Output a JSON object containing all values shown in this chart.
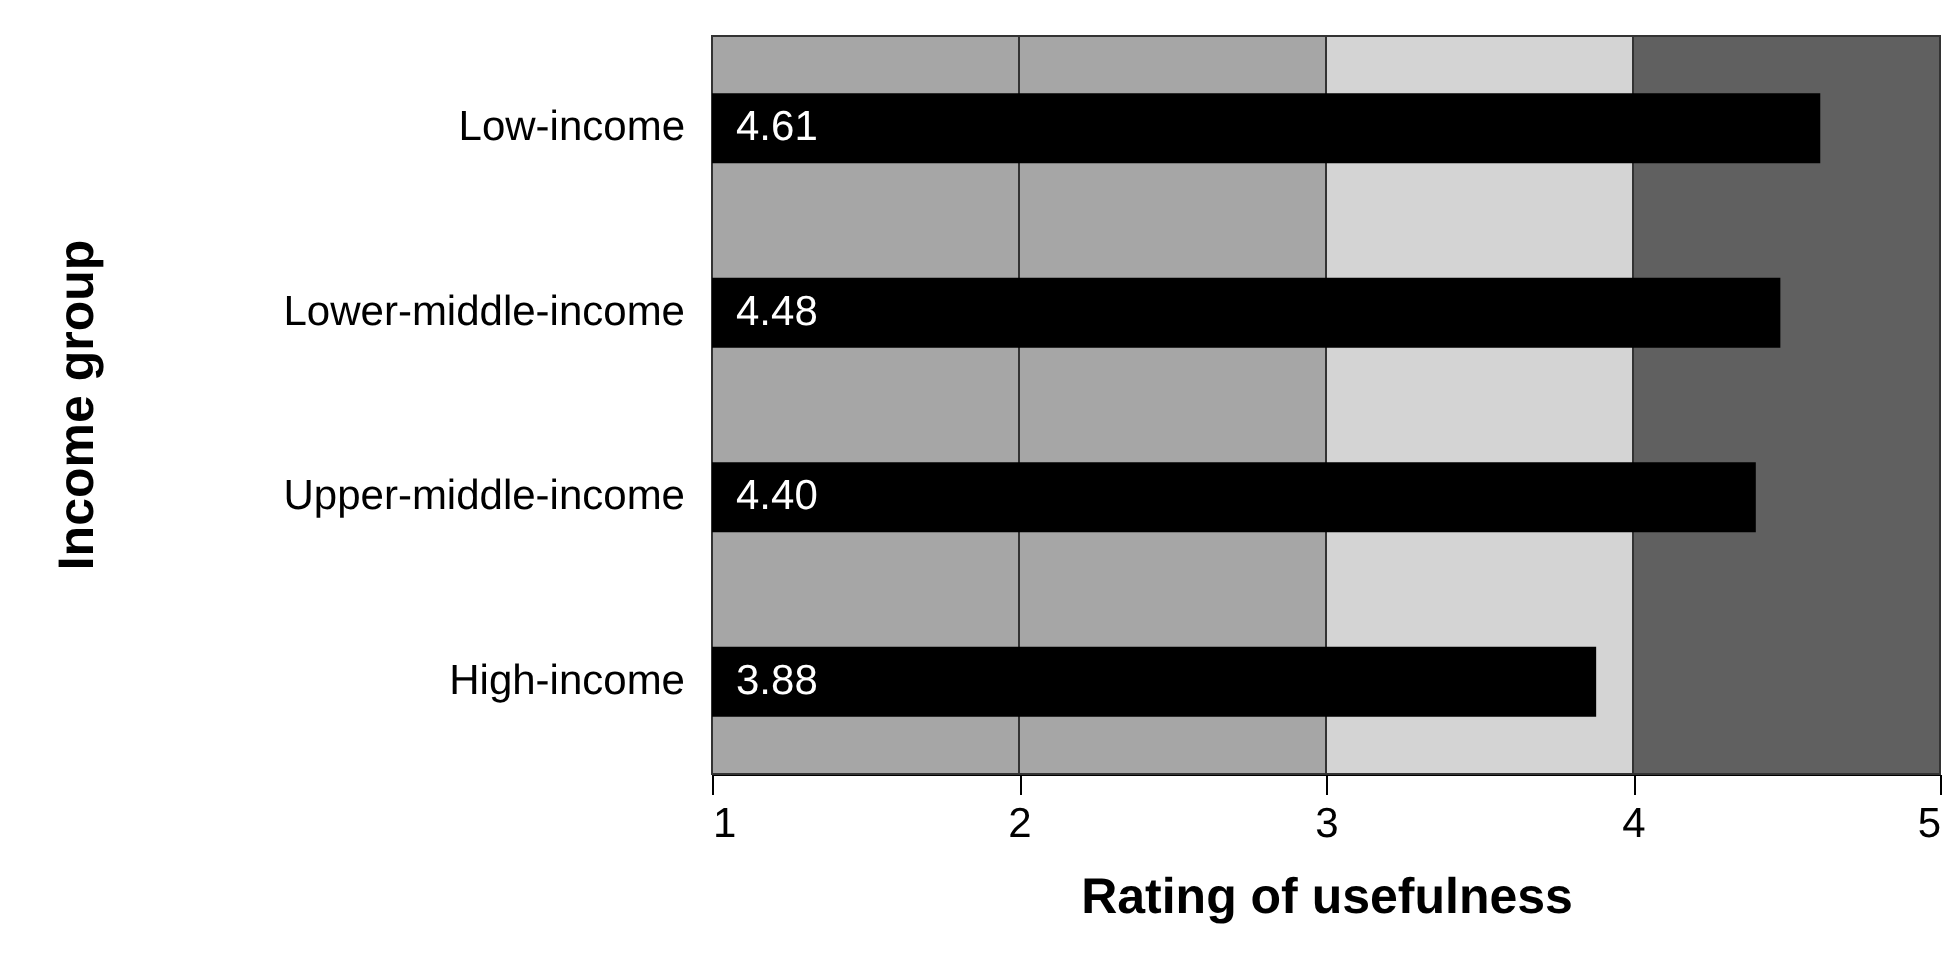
{
  "chart_data": {
    "type": "bar",
    "orientation": "horizontal",
    "xlabel": "Rating of usefulness",
    "ylabel": "Income group",
    "categories": [
      "Low-income",
      "Lower-middle-income",
      "Upper-middle-income",
      "High-income"
    ],
    "values": [
      4.61,
      4.48,
      4.4,
      3.88
    ],
    "color": "#000000",
    "value_labels": [
      "4.61",
      "4.48",
      "4.40",
      "3.88"
    ],
    "xlim": [
      1,
      5
    ],
    "xticks": [
      1,
      2,
      3,
      4,
      5
    ],
    "bands": [
      {
        "axis": "x",
        "from": 1,
        "to": 2,
        "color": "#a6a6a6"
      },
      {
        "axis": "x",
        "from": 2,
        "to": 3,
        "color": "#a6a6a6"
      },
      {
        "axis": "x",
        "from": 3,
        "to": 4,
        "color": "#d4d4d4"
      },
      {
        "axis": "x",
        "from": 4,
        "to": 5,
        "color": "#606060"
      }
    ]
  }
}
